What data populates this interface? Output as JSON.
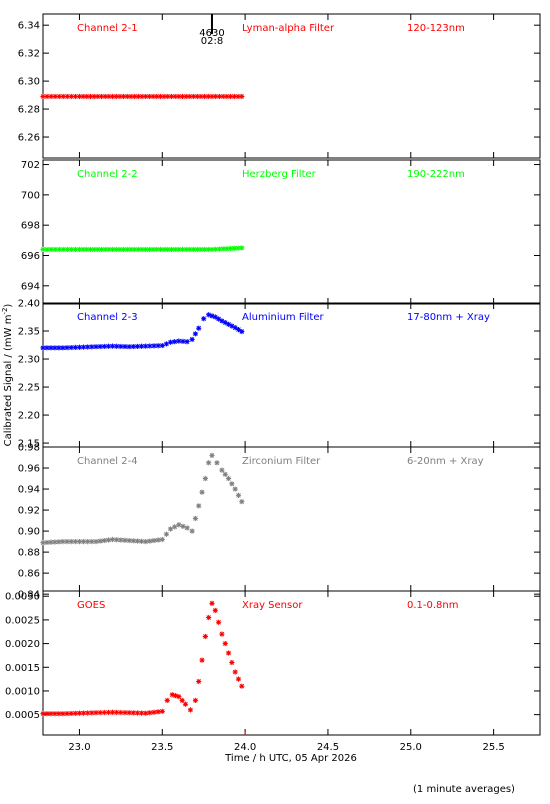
{
  "chart_data": {
    "type": "scatter",
    "ylabel": "Calibrated Signal / (mW m",
    "ylabel_sup": "-2",
    "ylabel_close": ")",
    "xlabel": "Time / h UTC, 05 Apr 2026",
    "footnote": "(1 minute averages)",
    "marker_label": {
      "top": "4630",
      "bottom": "02:8",
      "x": 23.8
    },
    "xlim": [
      22.78,
      25.78
    ],
    "xticks": [
      23.0,
      23.5,
      24.0,
      24.5,
      25.0,
      25.5
    ],
    "xtick_labels": [
      "23.0",
      "23.5",
      "24.0",
      "24.5",
      "25.0",
      "25.5"
    ],
    "panels": [
      {
        "labels": [
          "Channel 2-1",
          "Lyman-alpha Filter",
          "120-123nm"
        ],
        "color": "#ff0000",
        "ylim": [
          6.245,
          6.348
        ],
        "yticks": [
          6.26,
          6.28,
          6.3,
          6.32,
          6.34
        ],
        "ytick_labels": [
          "6.26",
          "6.28",
          "6.30",
          "6.32",
          "6.34"
        ],
        "series": {
          "x": [
            22.78,
            23.0,
            23.2,
            23.4,
            23.6,
            23.8,
            23.98
          ],
          "y": [
            6.289,
            6.289,
            6.289,
            6.289,
            6.289,
            6.289,
            6.289
          ]
        }
      },
      {
        "labels": [
          "Channel 2-2",
          "Herzberg Filter",
          "190-222nm"
        ],
        "color": "#00ff00",
        "ylim": [
          692.8,
          702.3
        ],
        "yticks": [
          694,
          696,
          698,
          700,
          702
        ],
        "ytick_labels": [
          "694",
          "696",
          "698",
          "700",
          "702"
        ],
        "series": {
          "x": [
            22.78,
            23.0,
            23.2,
            23.4,
            23.6,
            23.8,
            23.98
          ],
          "y": [
            696.4,
            696.4,
            696.4,
            696.4,
            696.4,
            696.4,
            696.5
          ]
        }
      },
      {
        "labels": [
          "Channel 2-3",
          "Aluminium Filter",
          "17-80nm + Xray"
        ],
        "color": "#0000ff",
        "ylim": [
          2.143,
          2.4
        ],
        "yticks": [
          2.15,
          2.2,
          2.25,
          2.3,
          2.35,
          2.4
        ],
        "ytick_labels": [
          "2.15",
          "2.20",
          "2.25",
          "2.30",
          "2.35",
          "2.40"
        ],
        "series": {
          "x": [
            22.78,
            22.9,
            23.0,
            23.1,
            23.2,
            23.3,
            23.4,
            23.5,
            23.55,
            23.6,
            23.65,
            23.68,
            23.72,
            23.75,
            23.78,
            23.82,
            23.86,
            23.9,
            23.94,
            23.98
          ],
          "y": [
            2.32,
            2.32,
            2.321,
            2.322,
            2.323,
            2.322,
            2.323,
            2.324,
            2.33,
            2.332,
            2.331,
            2.335,
            2.355,
            2.372,
            2.379,
            2.375,
            2.368,
            2.362,
            2.356,
            2.349
          ]
        }
      },
      {
        "labels": [
          "Channel 2-4",
          "Zirconium Filter",
          "6-20nm + Xray"
        ],
        "color": "#808080",
        "ylim": [
          0.843,
          0.98
        ],
        "yticks": [
          0.84,
          0.86,
          0.88,
          0.9,
          0.92,
          0.94,
          0.96,
          0.98
        ],
        "ytick_labels": [
          "0.84",
          "0.86",
          "0.88",
          "0.90",
          "0.92",
          "0.94",
          "0.96",
          "0.98"
        ],
        "series": {
          "x": [
            22.78,
            22.9,
            23.0,
            23.1,
            23.2,
            23.3,
            23.4,
            23.5,
            23.55,
            23.6,
            23.65,
            23.68,
            23.7,
            23.72,
            23.74,
            23.76,
            23.78,
            23.8,
            23.83,
            23.86,
            23.9,
            23.94,
            23.98
          ],
          "y": [
            0.889,
            0.89,
            0.89,
            0.89,
            0.892,
            0.891,
            0.89,
            0.892,
            0.902,
            0.906,
            0.903,
            0.9,
            0.912,
            0.924,
            0.937,
            0.95,
            0.965,
            0.972,
            0.965,
            0.958,
            0.95,
            0.94,
            0.928
          ]
        }
      },
      {
        "labels": [
          "GOES",
          "Xray Sensor",
          "0.1-0.8nm"
        ],
        "color": "#ff0000",
        "ylim": [
          7e-05,
          0.00311
        ],
        "yticks": [
          0.0005,
          0.001,
          0.0015,
          0.002,
          0.0025,
          0.003
        ],
        "ytick_labels": [
          "0.0005",
          "0.0010",
          "0.0015",
          "0.0020",
          "0.0025",
          "0.0030"
        ],
        "series": {
          "x": [
            22.78,
            22.9,
            23.0,
            23.1,
            23.2,
            23.3,
            23.4,
            23.5,
            23.53,
            23.56,
            23.6,
            23.64,
            23.67,
            23.7,
            23.72,
            23.74,
            23.76,
            23.78,
            23.8,
            23.82,
            23.84,
            23.86,
            23.88,
            23.9,
            23.92,
            23.94,
            23.96,
            23.98
          ],
          "y": [
            0.00052,
            0.00052,
            0.00053,
            0.00054,
            0.00055,
            0.00054,
            0.00053,
            0.00057,
            0.0008,
            0.00092,
            0.00088,
            0.00072,
            0.0006,
            0.0008,
            0.0012,
            0.00165,
            0.00215,
            0.00255,
            0.00285,
            0.0027,
            0.00245,
            0.0022,
            0.002,
            0.0018,
            0.0016,
            0.0014,
            0.00125,
            0.0011
          ]
        }
      }
    ]
  }
}
